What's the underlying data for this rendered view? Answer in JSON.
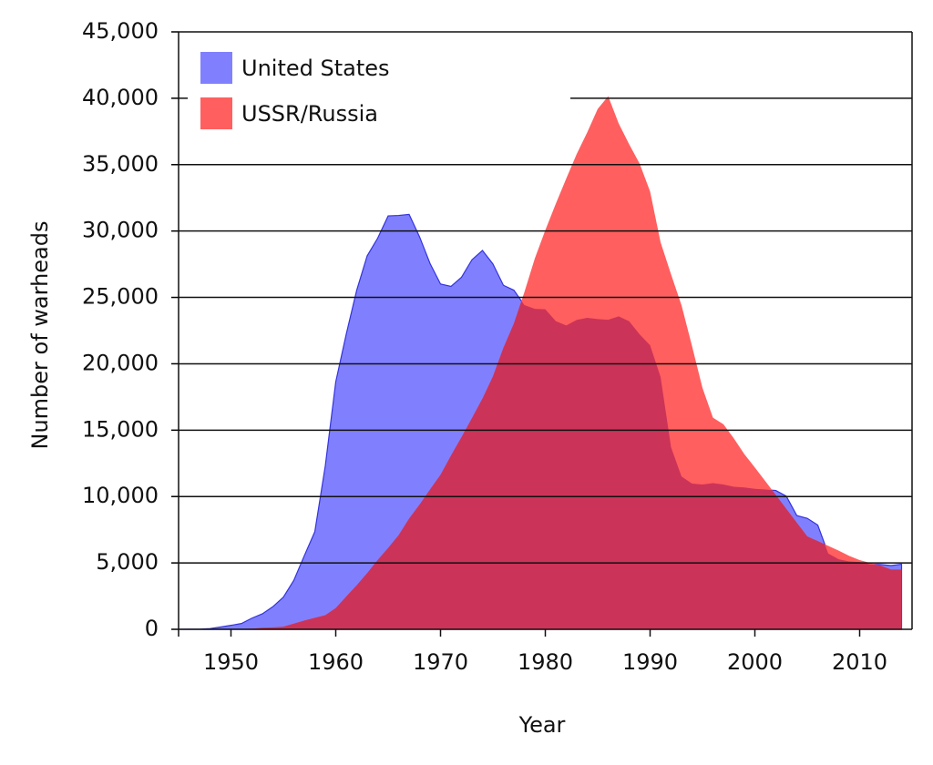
{
  "chart_data": {
    "type": "area",
    "xlabel": "Year",
    "ylabel": "Number of warheads",
    "x": [
      1945,
      1946,
      1947,
      1948,
      1949,
      1950,
      1951,
      1952,
      1953,
      1954,
      1955,
      1956,
      1957,
      1958,
      1959,
      1960,
      1961,
      1962,
      1963,
      1964,
      1965,
      1966,
      1967,
      1968,
      1969,
      1970,
      1971,
      1972,
      1973,
      1974,
      1975,
      1976,
      1977,
      1978,
      1979,
      1980,
      1981,
      1982,
      1983,
      1984,
      1985,
      1986,
      1987,
      1988,
      1989,
      1990,
      1991,
      1992,
      1993,
      1994,
      1995,
      1996,
      1997,
      1998,
      1999,
      2000,
      2001,
      2002,
      2003,
      2004,
      2005,
      2006,
      2007,
      2008,
      2009,
      2010,
      2011,
      2012,
      2013,
      2014
    ],
    "series": [
      {
        "name": "United States",
        "color": "#8080ff",
        "stroke": "#3333dd",
        "values": [
          2,
          9,
          13,
          50,
          170,
          299,
          438,
          841,
          1169,
          1703,
          2422,
          3692,
          5543,
          7345,
          12298,
          18638,
          22229,
          25540,
          28133,
          29463,
          31139,
          31175,
          31255,
          29561,
          27552,
          26008,
          25830,
          26516,
          27835,
          28537,
          27519,
          25914,
          25542,
          24418,
          24138,
          24104,
          23208,
          22886,
          23305,
          23459,
          23368,
          23317,
          23575,
          23205,
          22217,
          21392,
          19008,
          13708,
          11511,
          10979,
          10904,
          11011,
          10903,
          10732,
          10685,
          10577,
          10526,
          10457,
          10027,
          8570,
          8360,
          7853,
          5709,
          5273,
          5113,
          5066,
          4897,
          4881,
          4804,
          4900
        ]
      },
      {
        "name": "USSR/Russia",
        "color": "#ff5f5f",
        "values": [
          0,
          0,
          0,
          0,
          1,
          5,
          25,
          50,
          120,
          150,
          200,
          426,
          660,
          869,
          1060,
          1605,
          2471,
          3322,
          4238,
          5221,
          6129,
          7089,
          8339,
          9399,
          10538,
          11643,
          13092,
          14478,
          15915,
          17385,
          19055,
          21205,
          23044,
          25393,
          27935,
          30062,
          32049,
          33952,
          35804,
          37431,
          39197,
          40159,
          38107,
          36538,
          35078,
          32980,
          29154,
          26734,
          24403,
          21339,
          18179,
          15942,
          15442,
          14368,
          13188,
          12188,
          11152,
          10114,
          9076,
          8038,
          7000,
          6643,
          6286,
          5929,
          5527,
          5215,
          4995,
          4800,
          4500,
          4500
        ]
      }
    ],
    "overlap_color": "#cc3358",
    "xlim": [
      1945,
      2015
    ],
    "xticks": [
      1950,
      1960,
      1970,
      1980,
      1990,
      2000,
      2010
    ],
    "ylim": [
      0,
      45000
    ],
    "yticks": [
      0,
      {
        "value": 5000,
        "label": "5,000"
      },
      {
        "value": 10000,
        "label": "10,000"
      },
      {
        "value": 15000,
        "label": "15,000"
      },
      {
        "value": 20000,
        "label": "20,000"
      },
      {
        "value": 25000,
        "label": "25,000"
      },
      {
        "value": 30000,
        "label": "30,000"
      },
      {
        "value": 35000,
        "label": "35,000"
      },
      {
        "value": 40000,
        "label": "40,000"
      },
      {
        "value": 45000,
        "label": "45,000"
      }
    ],
    "grid": true,
    "legend": "upper left"
  }
}
